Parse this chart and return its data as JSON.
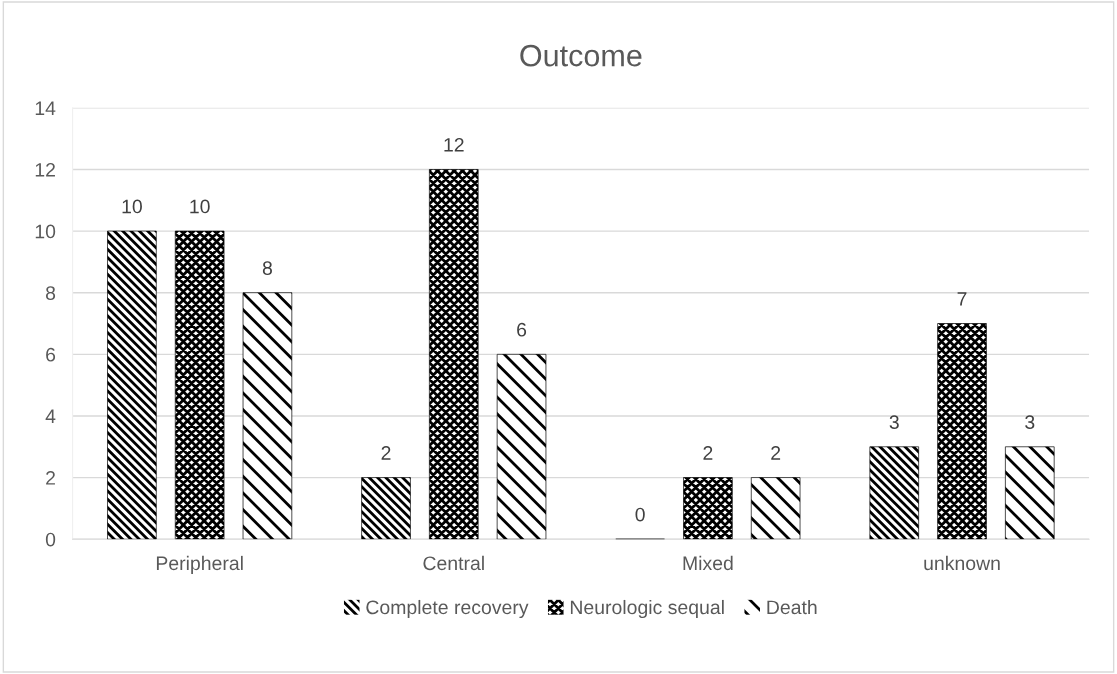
{
  "chart_data": {
    "type": "bar",
    "title": "Outcome",
    "categories": [
      "Peripheral",
      "Central",
      "Mixed",
      "unknown"
    ],
    "series": [
      {
        "name": "Complete recovery",
        "color": "#000000",
        "values": [
          10,
          2,
          0,
          3
        ]
      },
      {
        "name": "Neurologic sequal",
        "color": "#000000",
        "values": [
          10,
          12,
          2,
          7
        ]
      },
      {
        "name": "Death",
        "color": "#000000",
        "values": [
          8,
          6,
          2,
          3
        ]
      }
    ],
    "ylim": [
      0,
      14
    ],
    "yticks": [
      0,
      2,
      4,
      6,
      8,
      10,
      12,
      14
    ],
    "grid": "y",
    "legend": "bottom",
    "data_labels": true
  }
}
